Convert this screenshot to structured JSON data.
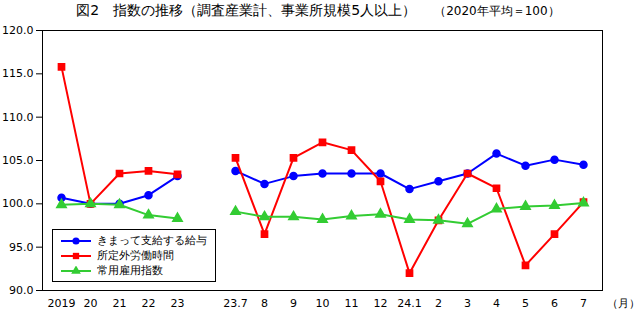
{
  "chart_data": {
    "type": "line",
    "title": "図2　指数の推移（調査産業計、事業所規模5人以上）",
    "subtitle": "（2020年平均＝100）",
    "x_label": "（月）",
    "categories": [
      "2019",
      "20",
      "21",
      "22",
      "23",
      null,
      "23.7",
      "8",
      "9",
      "10",
      "11",
      "12",
      "24.1",
      "2",
      "3",
      "4",
      "5",
      "6",
      "7"
    ],
    "series": [
      {
        "name": "きまって支給する給与",
        "color": "#0000ff",
        "marker": "circle",
        "values": [
          100.7,
          100.0,
          100.0,
          101.0,
          103.2,
          null,
          103.8,
          102.3,
          103.2,
          103.5,
          103.5,
          103.5,
          101.7,
          102.6,
          103.5,
          105.8,
          104.4,
          105.1,
          104.5
        ]
      },
      {
        "name": "所定外労働時間",
        "color": "#ff0000",
        "marker": "square",
        "values": [
          115.8,
          100.0,
          103.5,
          103.8,
          103.4,
          null,
          105.3,
          96.5,
          105.3,
          107.1,
          106.2,
          102.6,
          92.0,
          98.1,
          103.5,
          101.8,
          92.9,
          96.5,
          100.2
        ]
      },
      {
        "name": "常用雇用指数",
        "color": "#33cc33",
        "marker": "triangle",
        "values": [
          99.9,
          100.0,
          99.9,
          98.7,
          98.3,
          null,
          99.1,
          98.5,
          98.5,
          98.2,
          98.6,
          98.8,
          98.2,
          98.1,
          97.7,
          99.4,
          99.7,
          99.8,
          100.1
        ]
      }
    ],
    "ylim": [
      90,
      120
    ],
    "yticks": [
      {
        "value": 90,
        "label": "90.0"
      },
      {
        "value": 95,
        "label": "95.0"
      },
      {
        "value": 100,
        "label": "100.0"
      },
      {
        "value": 105,
        "label": "105.0"
      },
      {
        "value": 110,
        "label": "110.0"
      },
      {
        "value": 115,
        "label": "115.0"
      },
      {
        "value": 120,
        "label": "120.0"
      }
    ],
    "grid": false,
    "legend": "bottom-left"
  }
}
